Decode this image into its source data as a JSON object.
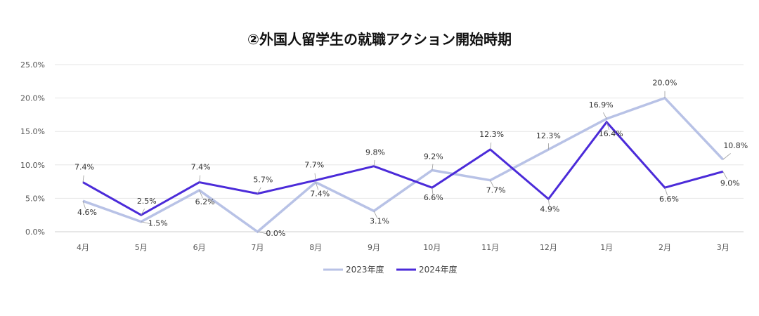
{
  "chart_data": {
    "type": "line",
    "title": "②外国人留学生の就職アクション開始時期",
    "categories": [
      "4月",
      "5月",
      "6月",
      "7月",
      "8月",
      "9月",
      "10月",
      "11月",
      "12月",
      "1月",
      "2月",
      "3月"
    ],
    "ylim": [
      0,
      25
    ],
    "yticks": [
      "0.0%",
      "5.0%",
      "10.0%",
      "15.0%",
      "20.0%",
      "25.0%"
    ],
    "ytick_values": [
      0,
      5,
      10,
      15,
      20,
      25
    ],
    "grid": true,
    "legend_position": "bottom",
    "series": [
      {
        "name": "2023年度",
        "color": "#b8c2e6",
        "values": [
          4.6,
          1.5,
          6.2,
          0.0,
          7.4,
          3.1,
          9.2,
          7.7,
          12.3,
          16.9,
          20.0,
          10.8
        ],
        "labels": [
          "4.6%",
          "1.5%",
          "6.2%",
          "0.0%",
          "7.4%",
          "3.1%",
          "9.2%",
          "7.7%",
          "12.3%",
          "16.9%",
          "20.0%",
          "10.8%"
        ],
        "label_offsets": [
          [
            6,
            20
          ],
          [
            24,
            6
          ],
          [
            8,
            20
          ],
          [
            26,
            6
          ],
          [
            6,
            20
          ],
          [
            8,
            18
          ],
          [
            2,
            -16
          ],
          [
            8,
            18
          ],
          [
            0,
            -16
          ],
          [
            -8,
            -16
          ],
          [
            0,
            -18
          ],
          [
            18,
            -16
          ]
        ]
      },
      {
        "name": "2024年度",
        "color": "#4b2bd9",
        "values": [
          7.4,
          2.5,
          7.4,
          5.7,
          7.7,
          9.8,
          6.6,
          12.3,
          4.9,
          16.4,
          6.6,
          9.0
        ],
        "labels": [
          "7.4%",
          "2.5%",
          "7.4%",
          "5.7%",
          "7.7%",
          "9.8%",
          "6.6%",
          "12.3%",
          "4.9%",
          "16.4%",
          "6.6%",
          "9.0%"
        ],
        "label_offsets": [
          [
            2,
            -18
          ],
          [
            8,
            -16
          ],
          [
            2,
            -18
          ],
          [
            8,
            -16
          ],
          [
            -2,
            -18
          ],
          [
            2,
            -16
          ],
          [
            2,
            18
          ],
          [
            2,
            -18
          ],
          [
            2,
            18
          ],
          [
            6,
            20
          ],
          [
            6,
            20
          ],
          [
            10,
            20
          ]
        ]
      }
    ]
  }
}
